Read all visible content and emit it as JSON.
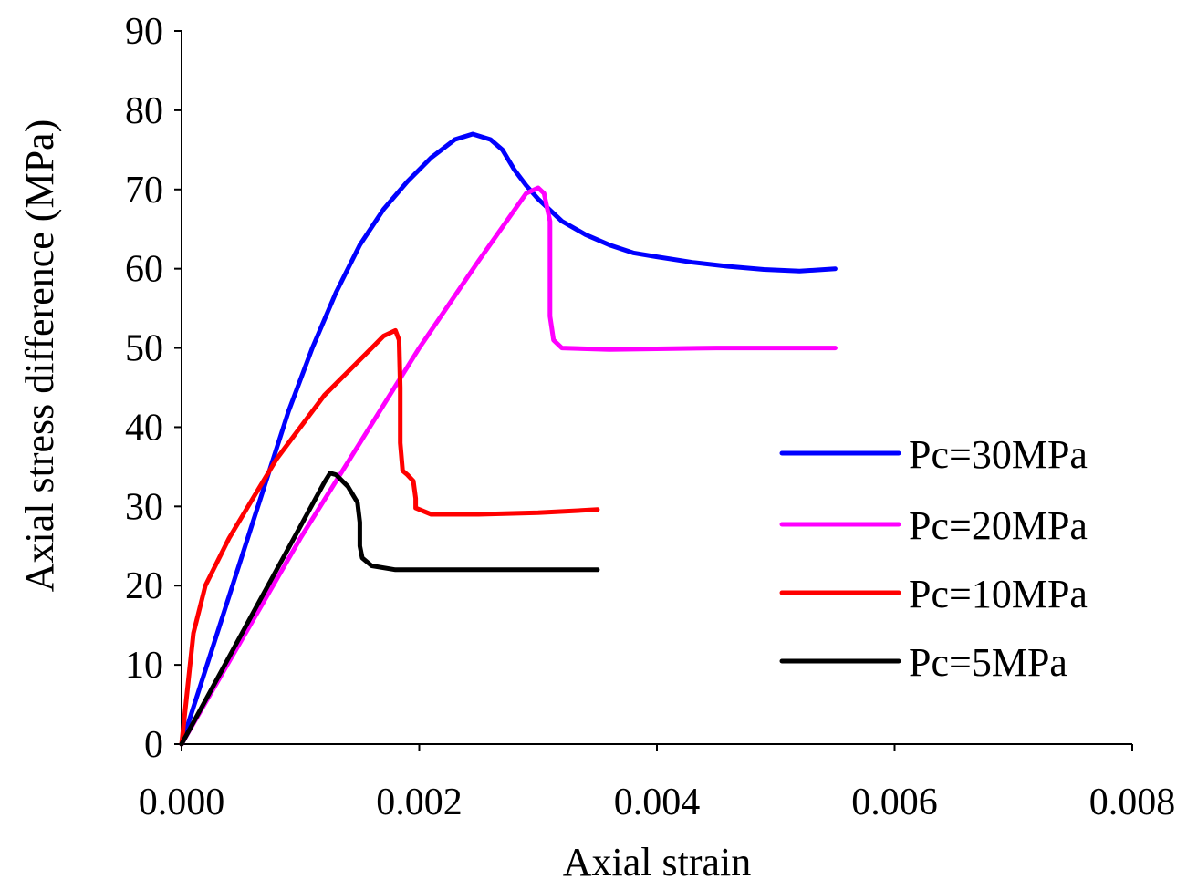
{
  "chart_data": {
    "type": "line",
    "title": "",
    "xlabel": "Axial strain",
    "ylabel": "Axial stress difference (MPa)",
    "xlim": [
      0,
      0.008
    ],
    "ylim": [
      0,
      90
    ],
    "x_ticks": [
      0,
      0.002,
      0.004,
      0.006,
      0.008
    ],
    "x_tick_labels": [
      "0.000",
      "0.002",
      "0.004",
      "0.006",
      "0.008"
    ],
    "y_ticks": [
      0,
      10,
      20,
      30,
      40,
      50,
      60,
      70,
      80,
      90
    ],
    "y_tick_labels": [
      "0",
      "10",
      "20",
      "30",
      "40",
      "50",
      "60",
      "70",
      "80",
      "90"
    ],
    "grid": false,
    "legend_position": "right",
    "series": [
      {
        "name": "Pc=30MPa",
        "color": "#0000ff",
        "points": [
          [
            0,
            0
          ],
          [
            0.0003,
            14
          ],
          [
            0.0006,
            28
          ],
          [
            0.0009,
            42
          ],
          [
            0.0011,
            50
          ],
          [
            0.0013,
            57
          ],
          [
            0.0015,
            63
          ],
          [
            0.0017,
            67.5
          ],
          [
            0.0019,
            71
          ],
          [
            0.0021,
            74
          ],
          [
            0.0023,
            76.3
          ],
          [
            0.00245,
            77
          ],
          [
            0.0026,
            76.3
          ],
          [
            0.0027,
            75
          ],
          [
            0.0028,
            72.5
          ],
          [
            0.0029,
            70.5
          ],
          [
            0.003,
            68.8
          ],
          [
            0.0032,
            66
          ],
          [
            0.0034,
            64.3
          ],
          [
            0.0036,
            63
          ],
          [
            0.0038,
            62
          ],
          [
            0.004,
            61.5
          ],
          [
            0.0043,
            60.8
          ],
          [
            0.0046,
            60.3
          ],
          [
            0.0049,
            59.9
          ],
          [
            0.0052,
            59.7
          ],
          [
            0.0055,
            60
          ]
        ]
      },
      {
        "name": "Pc=20MPa",
        "color": "#ff00ff",
        "points": [
          [
            0,
            0
          ],
          [
            0.0005,
            13
          ],
          [
            0.001,
            26
          ],
          [
            0.0015,
            38
          ],
          [
            0.002,
            50
          ],
          [
            0.0025,
            61
          ],
          [
            0.0029,
            69.5
          ],
          [
            0.003,
            70.2
          ],
          [
            0.00305,
            69.5
          ],
          [
            0.0031,
            66
          ],
          [
            0.0031,
            60
          ],
          [
            0.0031,
            54
          ],
          [
            0.00313,
            51
          ],
          [
            0.0032,
            50
          ],
          [
            0.0036,
            49.8
          ],
          [
            0.0045,
            50
          ],
          [
            0.0055,
            50
          ]
        ]
      },
      {
        "name": "Pc=10MPa",
        "color": "#ff0000",
        "points": [
          [
            0,
            0
          ],
          [
            0.0001,
            14
          ],
          [
            0.0002,
            20
          ],
          [
            0.0004,
            26
          ],
          [
            0.0006,
            31
          ],
          [
            0.0008,
            36
          ],
          [
            0.001,
            40
          ],
          [
            0.0012,
            44
          ],
          [
            0.0014,
            47
          ],
          [
            0.0016,
            50
          ],
          [
            0.0017,
            51.5
          ],
          [
            0.0018,
            52.2
          ],
          [
            0.00183,
            51
          ],
          [
            0.00184,
            45
          ],
          [
            0.00184,
            38
          ],
          [
            0.00186,
            34.5
          ],
          [
            0.0019,
            34
          ],
          [
            0.00195,
            33.2
          ],
          [
            0.00197,
            31
          ],
          [
            0.00197,
            29.8
          ],
          [
            0.0021,
            29
          ],
          [
            0.0025,
            29
          ],
          [
            0.003,
            29.2
          ],
          [
            0.0035,
            29.6
          ]
        ]
      },
      {
        "name": "Pc=5MPa",
        "color": "#000000",
        "points": [
          [
            0,
            0
          ],
          [
            0.0002,
            5.5
          ],
          [
            0.0004,
            11
          ],
          [
            0.0006,
            16.5
          ],
          [
            0.0008,
            22
          ],
          [
            0.001,
            27.5
          ],
          [
            0.0012,
            33
          ],
          [
            0.00125,
            34.2
          ],
          [
            0.0013,
            34
          ],
          [
            0.0014,
            32.5
          ],
          [
            0.00148,
            30.5
          ],
          [
            0.0015,
            28
          ],
          [
            0.0015,
            25
          ],
          [
            0.00152,
            23.5
          ],
          [
            0.0016,
            22.5
          ],
          [
            0.0018,
            22
          ],
          [
            0.0025,
            22
          ],
          [
            0.0035,
            22
          ]
        ]
      }
    ]
  }
}
